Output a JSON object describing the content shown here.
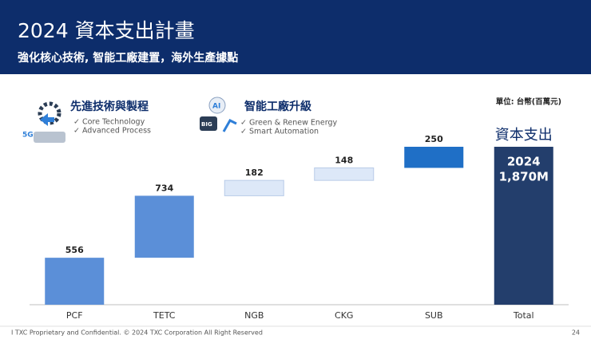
{
  "header": {
    "title": "2024 資本支出計畫",
    "subtitle": "強化核心技術, 智能工廠建置，海外生產據點"
  },
  "highlights": [
    {
      "title": "先進技術與製程",
      "items": [
        "✓ Core Technology",
        "✓ Advanced Process"
      ]
    },
    {
      "title": "智能工廠升級",
      "items": [
        "✓ Green & Renew Energy",
        "✓ Smart Automation"
      ]
    }
  ],
  "chart_data": {
    "type": "waterfall",
    "unit_label": "單位: 台幣(百萬元)",
    "categories": [
      "PCF",
      "TETC",
      "NGB",
      "CKG",
      "SUB"
    ],
    "values": [
      556,
      734,
      182,
      148,
      250
    ],
    "colors": [
      "#5b8fd8",
      "#5b8fd8",
      "#dde8f8",
      "#dde8f8",
      "#1f6fc6"
    ],
    "total": {
      "category": "Total",
      "value": 1870,
      "value_label": "1,870M",
      "year": "2024",
      "title": "資本支出",
      "color": "#233e6c"
    }
  },
  "footer": {
    "text": "I   TXC Proprietary and Confidential. © 2024 TXC Corporation All Right Reserved",
    "page": "24"
  }
}
